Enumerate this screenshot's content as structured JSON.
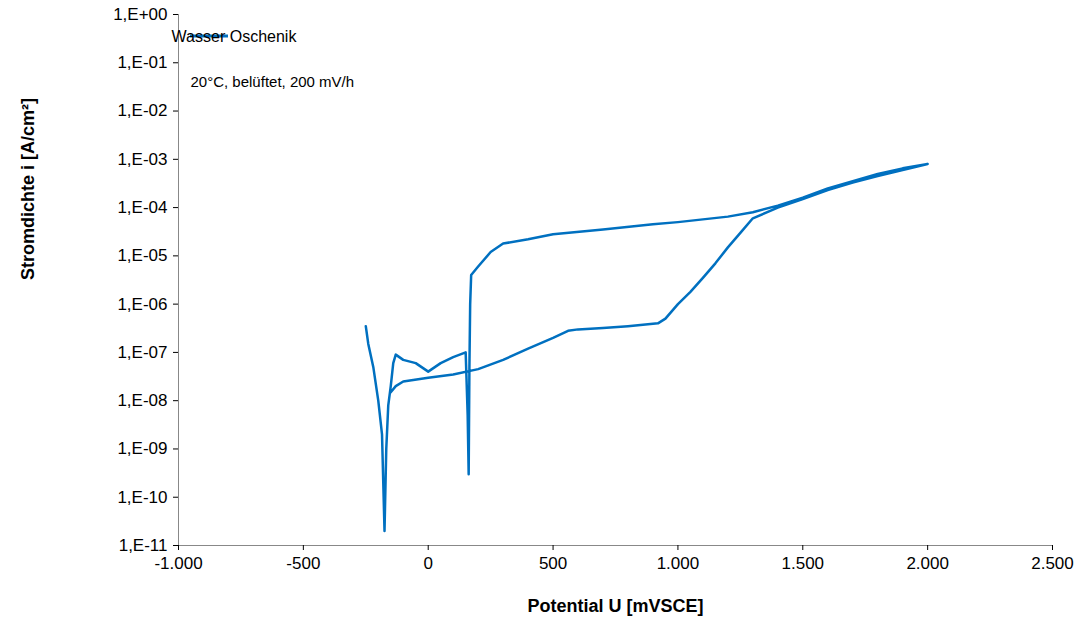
{
  "chart_data": {
    "type": "line",
    "x_label": "Potential U [mVSCE]",
    "y_label": "Stromdichte i [A/cm²]",
    "annotations": [
      "20°C, belüftet, 200 mV/h"
    ],
    "log": "y",
    "grid": false,
    "legend": "top-left",
    "xlim": [
      -1000,
      2500
    ],
    "xticks": [
      {
        "value": -1000,
        "label": "-1.000"
      },
      -500,
      0,
      500,
      {
        "value": 1000,
        "label": "1.000"
      },
      {
        "value": 1500,
        "label": "1.500"
      },
      {
        "value": 2000,
        "label": "2.000"
      },
      {
        "value": 2500,
        "label": "2.500"
      }
    ],
    "ylim": [
      1e-11,
      1
    ],
    "yticks": [
      {
        "value": 1,
        "label": "1,E+00"
      },
      {
        "value": 0.1,
        "label": "1,E-01"
      },
      {
        "value": 0.01,
        "label": "1,E-02"
      },
      {
        "value": 0.001,
        "label": "1,E-03"
      },
      {
        "value": 0.0001,
        "label": "1,E-04"
      },
      {
        "value": 1e-05,
        "label": "1,E-05"
      },
      {
        "value": 1e-06,
        "label": "1,E-06"
      },
      {
        "value": 1e-07,
        "label": "1,E-07"
      },
      {
        "value": 1e-08,
        "label": "1,E-08"
      },
      {
        "value": 1e-09,
        "label": "1,E-09"
      },
      {
        "value": 1e-10,
        "label": "1,E-10"
      },
      {
        "value": 1e-11,
        "label": "1,E-11"
      }
    ],
    "x": [
      -250,
      -240,
      -220,
      -200,
      -185,
      -175,
      -168,
      -160,
      -150,
      -140,
      -130,
      -100,
      -50,
      0,
      50,
      100,
      150,
      158,
      162,
      165,
      168,
      172,
      200,
      250,
      300,
      400,
      500,
      700,
      900,
      1000,
      1200,
      1300,
      1400,
      1500,
      1600,
      1700,
      1800,
      1900,
      2000,
      1900,
      1800,
      1700,
      1600,
      1500,
      1400,
      1300,
      1250,
      1200,
      1150,
      1100,
      1050,
      1000,
      950,
      920,
      800,
      700,
      600,
      560,
      500,
      400,
      300,
      200,
      100,
      0,
      -100,
      -130,
      -150
    ],
    "series": [
      {
        "name": "Wasser Oschenik",
        "color": "#0070c0",
        "values": [
          3.5e-07,
          1.5e-07,
          5e-08,
          1e-08,
          2e-09,
          2e-11,
          1e-09,
          8e-09,
          2e-08,
          6e-08,
          9e-08,
          7e-08,
          6e-08,
          4e-08,
          6e-08,
          8e-08,
          1e-07,
          5e-09,
          3e-10,
          5e-08,
          1e-06,
          4e-06,
          6e-06,
          1.2e-05,
          1.8e-05,
          2.2e-05,
          2.8e-05,
          3.5e-05,
          4.5e-05,
          5e-05,
          6.5e-05,
          8e-05,
          0.00011,
          0.00016,
          0.00025,
          0.00035,
          0.0005,
          0.00065,
          0.0008,
          0.0006,
          0.00045,
          0.00033,
          0.00023,
          0.00015,
          0.0001,
          6e-05,
          3e-05,
          1.5e-05,
          7e-06,
          3.5e-06,
          1.8e-06,
          1e-06,
          5e-07,
          4e-07,
          3.5e-07,
          3.2e-07,
          3e-07,
          2.8e-07,
          2e-07,
          1.2e-07,
          7e-08,
          4.5e-08,
          3.5e-08,
          3e-08,
          2.5e-08,
          2e-08,
          1.5e-08
        ]
      }
    ]
  }
}
